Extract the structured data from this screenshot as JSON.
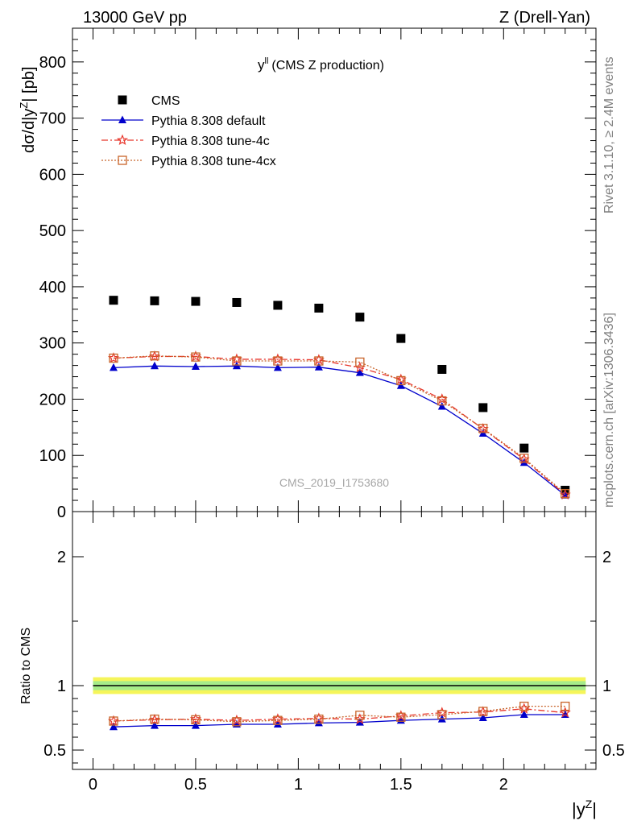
{
  "header": {
    "left": "13000 GeV pp",
    "right": "Z (Drell-Yan)"
  },
  "side_labels": {
    "rivet": "Rivet 3.1.10, ≥ 2.4M events",
    "mcplots": "mcplots.cern.ch [arXiv:1306.3436]"
  },
  "watermark": "CMS_2019_I1753680",
  "chart_data": [
    {
      "type": "scatter",
      "title_main": "y",
      "title_sup": "ll",
      "title_rest": "(CMS Z production)",
      "ylabel_parts": [
        "dσ/d|y",
        "Z",
        "| [pb]"
      ],
      "xlim": [
        -0.1,
        2.45
      ],
      "ylim": [
        0,
        860
      ],
      "yticks": [
        0,
        100,
        200,
        300,
        400,
        500,
        600,
        700,
        800
      ],
      "x": [
        0.1,
        0.3,
        0.5,
        0.7,
        0.9,
        1.1,
        1.3,
        1.5,
        1.7,
        1.9,
        2.1,
        2.3
      ],
      "series": [
        {
          "name": "CMS",
          "color": "#000000",
          "marker": "square-filled",
          "line": "none",
          "values": [
            376,
            375,
            374,
            372,
            367,
            362,
            346,
            308,
            253,
            185,
            113,
            38
          ]
        },
        {
          "name": "Pythia 8.308 default",
          "color": "#0000cc",
          "marker": "triangle-filled",
          "line": "solid",
          "values": [
            256,
            259,
            258,
            259,
            256,
            257,
            247,
            224,
            187,
            139,
            87,
            29
          ]
        },
        {
          "name": "Pythia 8.308 tune-4c",
          "color": "#e8372c",
          "marker": "star-open",
          "line": "dashdot",
          "values": [
            273,
            276,
            276,
            271,
            271,
            270,
            256,
            235,
            200,
            147,
            93,
            30
          ]
        },
        {
          "name": "Pythia 8.308 tune-4cx",
          "color": "#c8642a",
          "marker": "square-open",
          "line": "dotted",
          "values": [
            273,
            277,
            275,
            268,
            268,
            268,
            266,
            233,
            197,
            148,
            95,
            32
          ]
        }
      ]
    },
    {
      "type": "line",
      "ylabel": "Ratio to CMS",
      "xlabel_parts": [
        "|y",
        "Z",
        "|"
      ],
      "xlim": [
        -0.1,
        2.45
      ],
      "ylim": [
        0.35,
        2.35
      ],
      "xticks": [
        0,
        0.5,
        1,
        1.5,
        2
      ],
      "xtick_labels": [
        "0",
        "0.5",
        "1",
        "1.5",
        "2"
      ],
      "yticks": [
        0.5,
        1,
        2
      ],
      "ytick_labels": [
        "0.5",
        "1",
        "2"
      ],
      "band": {
        "x_range": [
          0,
          2.4
        ],
        "outer": [
          0.935,
          1.065
        ],
        "inner": [
          0.965,
          1.035
        ]
      },
      "x": [
        0.1,
        0.3,
        0.5,
        0.7,
        0.9,
        1.1,
        1.3,
        1.5,
        1.7,
        1.9,
        2.1,
        2.3
      ],
      "series": [
        {
          "name": "Pythia 8.308 default",
          "color": "#0000cc",
          "marker": "triangle-filled",
          "line": "solid",
          "values": [
            0.68,
            0.69,
            0.69,
            0.7,
            0.7,
            0.71,
            0.715,
            0.73,
            0.74,
            0.75,
            0.775,
            0.775
          ]
        },
        {
          "name": "Pythia 8.308 tune-4c",
          "color": "#e8372c",
          "marker": "star-open",
          "line": "dashdot",
          "values": [
            0.725,
            0.735,
            0.74,
            0.73,
            0.74,
            0.745,
            0.74,
            0.765,
            0.79,
            0.795,
            0.82,
            0.79
          ]
        },
        {
          "name": "Pythia 8.308 tune-4cx",
          "color": "#c8642a",
          "marker": "square-open",
          "line": "dotted",
          "values": [
            0.725,
            0.74,
            0.735,
            0.72,
            0.73,
            0.74,
            0.77,
            0.755,
            0.775,
            0.8,
            0.84,
            0.84
          ]
        }
      ]
    }
  ]
}
